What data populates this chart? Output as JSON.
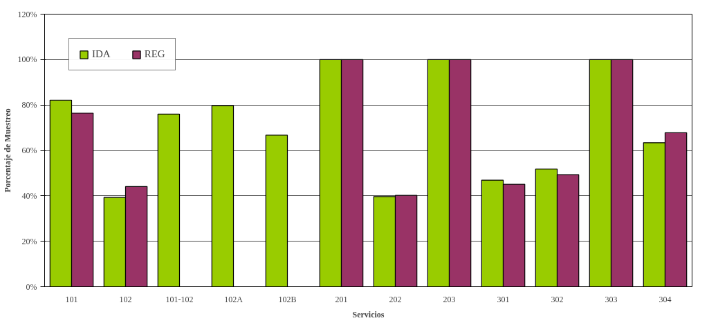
{
  "chart_data": {
    "type": "bar",
    "xlabel": "Servicios",
    "ylabel": "Porcentaje de Muestreo",
    "categories": [
      "101",
      "102",
      "101-102",
      "102A",
      "102B",
      "201",
      "202",
      "203",
      "301",
      "302",
      "303",
      "304"
    ],
    "series": [
      {
        "name": "IDA",
        "color": "#99cc00",
        "values": [
          82.1,
          39.3,
          76.0,
          79.7,
          66.7,
          100,
          39.7,
          100,
          46.9,
          51.8,
          100,
          63.4
        ]
      },
      {
        "name": "REG",
        "color": "#993366",
        "values": [
          76.4,
          44.1,
          null,
          null,
          null,
          100,
          40.2,
          100,
          45.1,
          49.3,
          100,
          67.8
        ]
      }
    ],
    "ylim": [
      0,
      120
    ],
    "yticks": [
      {
        "value": 0,
        "label": "0%"
      },
      {
        "value": 20,
        "label": "20%"
      },
      {
        "value": 40,
        "label": "40%"
      },
      {
        "value": 60,
        "label": "60%"
      },
      {
        "value": 80,
        "label": "80%"
      },
      {
        "value": 100,
        "label": "100%"
      },
      {
        "value": 120,
        "label": "120%"
      }
    ],
    "grid": "y",
    "legend": "top left"
  }
}
